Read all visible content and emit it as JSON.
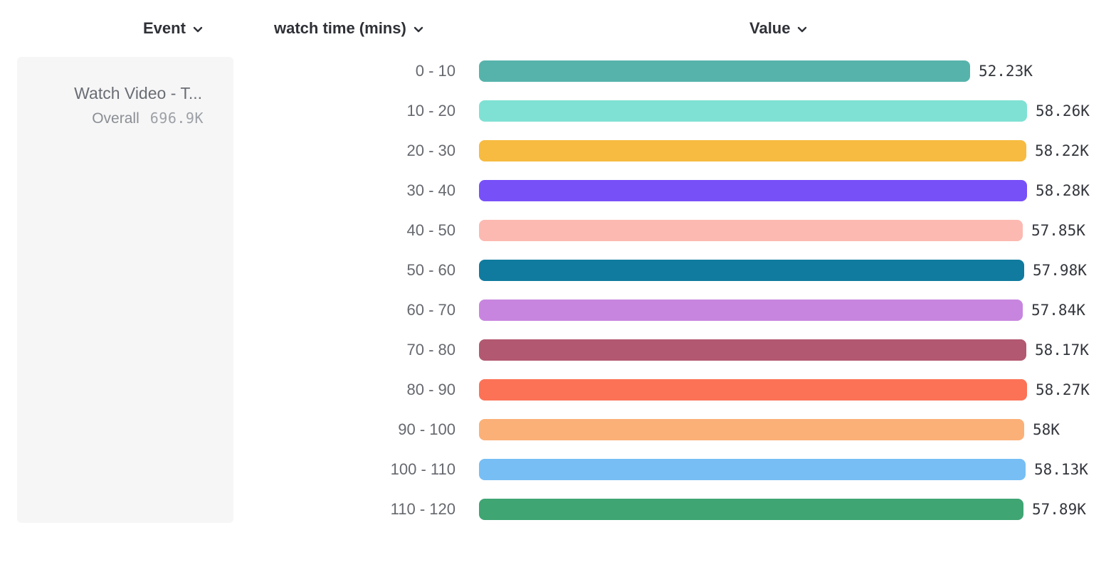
{
  "header": {
    "event_label": "Event",
    "breakdown_label": "watch time (mins)",
    "value_label": "Value"
  },
  "event_card": {
    "event_name": "Watch Video - T...",
    "overall_label": "Overall",
    "overall_value": "696.9K"
  },
  "icons": {
    "chevron": "chevron-down-icon"
  },
  "colors": {
    "header_text": "#2f3137",
    "category_text": "#65686e",
    "value_text": "#33363c",
    "card_bg": "#f6f6f6"
  },
  "chart_data": {
    "type": "bar",
    "orientation": "horizontal",
    "title": "",
    "xlabel": "Value",
    "ylabel": "watch time (mins)",
    "event": "Watch Video - T...",
    "overall_total": "696.9K",
    "xlim": [
      0,
      58.28
    ],
    "grid": false,
    "legend_position": "none",
    "unit": "K",
    "categories": [
      "0 - 10",
      "10 - 20",
      "20 - 30",
      "30 - 40",
      "40 - 50",
      "50 - 60",
      "60 - 70",
      "70 - 80",
      "80 - 90",
      "90 - 100",
      "100 - 110",
      "110 - 120"
    ],
    "values": [
      52.23,
      58.26,
      58.22,
      58.28,
      57.85,
      57.98,
      57.84,
      58.17,
      58.27,
      58.0,
      58.13,
      57.89
    ],
    "value_labels": [
      "52.23K",
      "58.26K",
      "58.22K",
      "58.28K",
      "57.85K",
      "57.98K",
      "57.84K",
      "58.17K",
      "58.27K",
      "58K",
      "58.13K",
      "57.89K"
    ],
    "bar_colors": [
      "#56B3AB",
      "#7FE1D4",
      "#F6BB40",
      "#7850F8",
      "#FCB9B1",
      "#107B9E",
      "#C885DF",
      "#B25870",
      "#FC7257",
      "#FBB077",
      "#77BEF4",
      "#3FA573"
    ]
  }
}
